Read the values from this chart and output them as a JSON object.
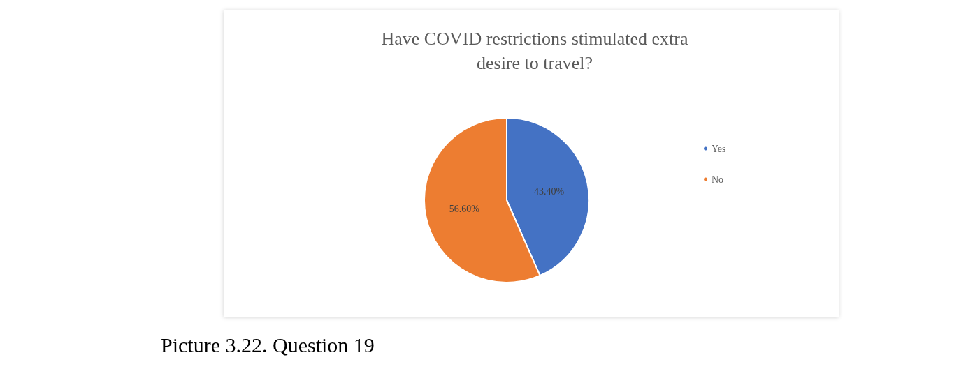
{
  "chart_data": {
    "type": "pie",
    "title": "Have COVID restrictions stimulated extra desire to travel?",
    "categories": [
      "Yes",
      "No"
    ],
    "values": [
      43.4,
      56.6
    ],
    "colors": [
      "#4472c4",
      "#ed7d31"
    ],
    "value_labels": [
      "43.40%",
      "56.60%"
    ],
    "legend": "right",
    "annotations": [
      "Picture 3.22. Question 19"
    ]
  }
}
